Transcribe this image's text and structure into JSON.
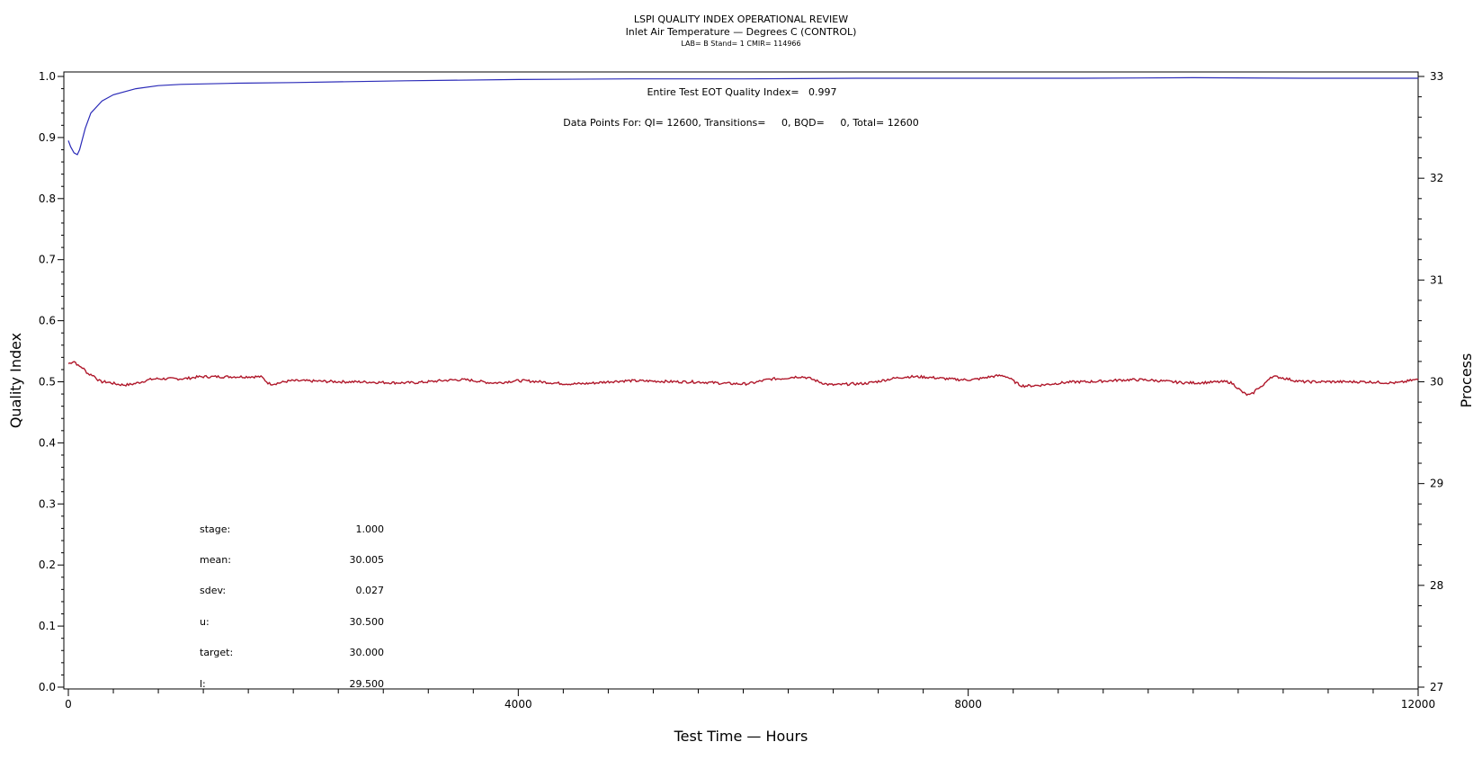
{
  "titles": [
    "LSPI QUALITY INDEX OPERATIONAL REVIEW",
    "Inlet Air Temperature — Degrees C (CONTROL)",
    "LAB= B Stand= 1 CMIR= 114966"
  ],
  "annotations": {
    "eot": "Entire Test EOT Quality Index=   0.997",
    "points": "Data Points For: QI= 12600, Transitions=     0, BQD=     0, Total= 12600"
  },
  "stats": [
    {
      "label": "stage:",
      "value": "1.000"
    },
    {
      "label": "mean:",
      "value": "30.005"
    },
    {
      "label": "sdev:",
      "value": "0.027"
    },
    {
      "label": "u:",
      "value": "30.500"
    },
    {
      "label": "target:",
      "value": "30.000"
    },
    {
      "label": "l:",
      "value": "29.500"
    }
  ],
  "colors": {
    "quality": "#2b2bb8",
    "process": "#b0182b",
    "axis": "#000000"
  },
  "chart_data": {
    "type": "line",
    "xlabel": "Test Time — Hours",
    "ylabel": "Quality Index",
    "y2label": "Process",
    "xlim": [
      0,
      12000
    ],
    "ylim": [
      0.0,
      1.0
    ],
    "y2lim": [
      27,
      33
    ],
    "xticks": [
      0,
      4000,
      8000,
      12000
    ],
    "yticks": [
      "0.0",
      "0.1",
      "0.2",
      "0.3",
      "0.4",
      "0.5",
      "0.6",
      "0.7",
      "0.8",
      "0.9",
      "1.0"
    ],
    "y2ticks": [
      "27",
      "28",
      "29",
      "30",
      "31",
      "32",
      "33"
    ],
    "series": [
      {
        "axis": "left",
        "x": [
          0,
          20,
          50,
          80,
          100,
          150,
          200,
          300,
          400,
          600,
          800,
          1000,
          1500,
          2000,
          3000,
          4000,
          5000,
          6000,
          7000,
          8000,
          9000,
          10000,
          11000,
          12000
        ],
        "y": [
          0.895,
          0.885,
          0.875,
          0.872,
          0.88,
          0.915,
          0.94,
          0.96,
          0.97,
          0.98,
          0.985,
          0.987,
          0.989,
          0.99,
          0.993,
          0.995,
          0.996,
          0.996,
          0.997,
          0.997,
          0.997,
          0.998,
          0.997,
          0.997
        ]
      },
      {
        "axis": "right",
        "x": [
          0,
          50,
          100,
          200,
          300,
          500,
          800,
          1000,
          1200,
          1500,
          1700,
          1800,
          2000,
          2500,
          3000,
          3500,
          3800,
          4000,
          4500,
          5000,
          5500,
          6000,
          6300,
          6500,
          6800,
          7000,
          7500,
          8000,
          8300,
          8500,
          9000,
          9500,
          10000,
          10300,
          10500,
          10600,
          10700,
          11000,
          11500,
          11800,
          12000
        ],
        "y": [
          30.18,
          30.2,
          30.15,
          30.07,
          30.0,
          29.97,
          30.03,
          30.03,
          30.05,
          30.05,
          30.05,
          29.98,
          30.01,
          30.0,
          29.99,
          30.02,
          29.99,
          30.01,
          29.98,
          30.01,
          30.0,
          29.98,
          30.03,
          30.05,
          29.97,
          29.98,
          30.05,
          30.02,
          30.06,
          29.96,
          30.0,
          30.02,
          29.99,
          30.0,
          29.87,
          29.95,
          30.05,
          30.0,
          30.0,
          29.99,
          30.02
        ]
      }
    ]
  }
}
